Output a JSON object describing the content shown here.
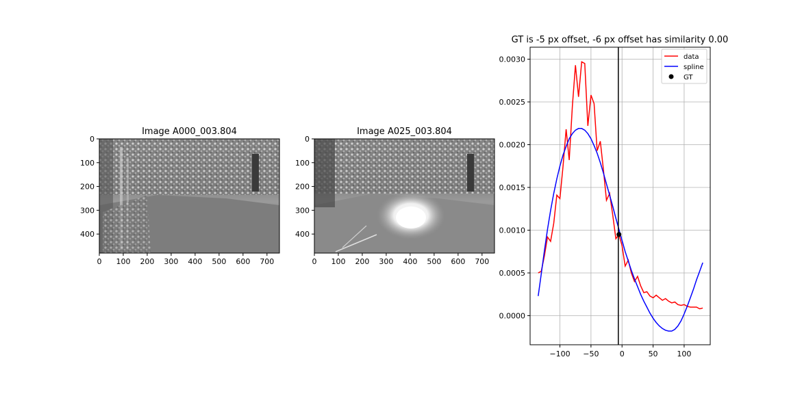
{
  "chart_data": [
    {
      "type": "image",
      "title": "Image A000_003.804",
      "xlim": [
        0,
        752
      ],
      "ylim": [
        480,
        0
      ],
      "xticks": [
        0,
        100,
        200,
        300,
        400,
        500,
        600,
        700
      ],
      "yticks": [
        0,
        100,
        200,
        300,
        400
      ],
      "image": "grayscale infrared photo of a paved path into dense bushes and trees"
    },
    {
      "type": "image",
      "title": "Image A025_003.804",
      "xlim": [
        0,
        752
      ],
      "ylim": [
        480,
        0
      ],
      "xticks": [
        0,
        100,
        200,
        300,
        400,
        500,
        600,
        700
      ],
      "yticks": [
        0,
        100,
        200,
        300,
        400
      ],
      "image": "grayscale infrared photo of the same path with a bright sun glare in the center"
    },
    {
      "type": "line",
      "title": "GT is -5 px offset, -6 px offset has similarity 0.00",
      "xlim": [
        -148,
        142
      ],
      "ylim": [
        -0.00034,
        0.00314
      ],
      "xticks": [
        -100,
        -50,
        0,
        50,
        100
      ],
      "xtick_labels": [
        "−100",
        "−50",
        "0",
        "50",
        "100"
      ],
      "yticks": [
        0.0,
        0.0005,
        0.001,
        0.0015,
        0.002,
        0.0025,
        0.003
      ],
      "ytick_labels": [
        "0.0000",
        "0.0005",
        "0.0010",
        "0.0015",
        "0.0020",
        "0.0025",
        "0.0030"
      ],
      "grid": true,
      "legend_position": "top-right",
      "series": [
        {
          "name": "data",
          "color": "#ff0000",
          "x": [
            -135,
            -130,
            -125,
            -120,
            -115,
            -110,
            -105,
            -100,
            -95,
            -90,
            -85,
            -80,
            -75,
            -70,
            -65,
            -60,
            -55,
            -50,
            -45,
            -40,
            -35,
            -30,
            -25,
            -20,
            -15,
            -10,
            -5,
            0,
            5,
            10,
            15,
            20,
            25,
            30,
            35,
            40,
            45,
            50,
            55,
            60,
            65,
            70,
            75,
            80,
            85,
            90,
            95,
            100,
            105,
            110,
            115,
            120,
            125,
            130
          ],
          "y": [
            0.0005,
            0.00052,
            0.0007,
            0.00092,
            0.00087,
            0.00108,
            0.00141,
            0.00137,
            0.00175,
            0.00218,
            0.00182,
            0.00245,
            0.00293,
            0.00256,
            0.00297,
            0.00295,
            0.00222,
            0.00258,
            0.00248,
            0.00193,
            0.00204,
            0.00171,
            0.00135,
            0.00143,
            0.00118,
            0.0009,
            0.00095,
            0.00082,
            0.00058,
            0.00065,
            0.0005,
            0.0004,
            0.00046,
            0.00035,
            0.00027,
            0.00028,
            0.00023,
            0.00021,
            0.00024,
            0.00021,
            0.00018,
            0.0002,
            0.00017,
            0.00015,
            0.00016,
            0.00013,
            0.00012,
            0.00013,
            0.00011,
            0.0001,
            0.0001,
            0.0001,
            8e-05,
            9e-05
          ]
        },
        {
          "name": "spline",
          "color": "#0000ff",
          "x": [
            -135,
            -130,
            -125,
            -120,
            -115,
            -110,
            -105,
            -100,
            -95,
            -90,
            -85,
            -80,
            -75,
            -70,
            -65,
            -60,
            -55,
            -50,
            -45,
            -40,
            -35,
            -30,
            -25,
            -20,
            -15,
            -10,
            -5,
            0,
            5,
            10,
            15,
            20,
            25,
            30,
            35,
            40,
            45,
            50,
            55,
            60,
            65,
            70,
            75,
            80,
            85,
            90,
            95,
            100,
            105,
            110,
            115,
            120,
            125,
            130
          ],
          "y": [
            0.00023,
            0.00049,
            0.00076,
            0.00101,
            0.00123,
            0.00143,
            0.0016,
            0.00175,
            0.00188,
            0.00198,
            0.00207,
            0.00213,
            0.00217,
            0.00219,
            0.00219,
            0.00217,
            0.00213,
            0.00207,
            0.00199,
            0.0019,
            0.00179,
            0.00167,
            0.00154,
            0.00141,
            0.00128,
            0.00114,
            0.00101,
            0.00088,
            0.00075,
            0.00064,
            0.00053,
            0.00043,
            0.00034,
            0.00025,
            0.00017,
            0.0001,
            3e-05,
            -3e-05,
            -8e-05,
            -0.00012,
            -0.00015,
            -0.00017,
            -0.00018,
            -0.00018,
            -0.00016,
            -0.00012,
            -6e-05,
            2e-05,
            0.00011,
            0.00021,
            0.00031,
            0.00042,
            0.00052,
            0.00062
          ]
        },
        {
          "name": "GT",
          "color": "#000000",
          "marker": "circle",
          "x": [
            -5
          ],
          "y": [
            0.00095
          ]
        }
      ],
      "vline": {
        "x": -6,
        "color": "#000000"
      }
    }
  ]
}
